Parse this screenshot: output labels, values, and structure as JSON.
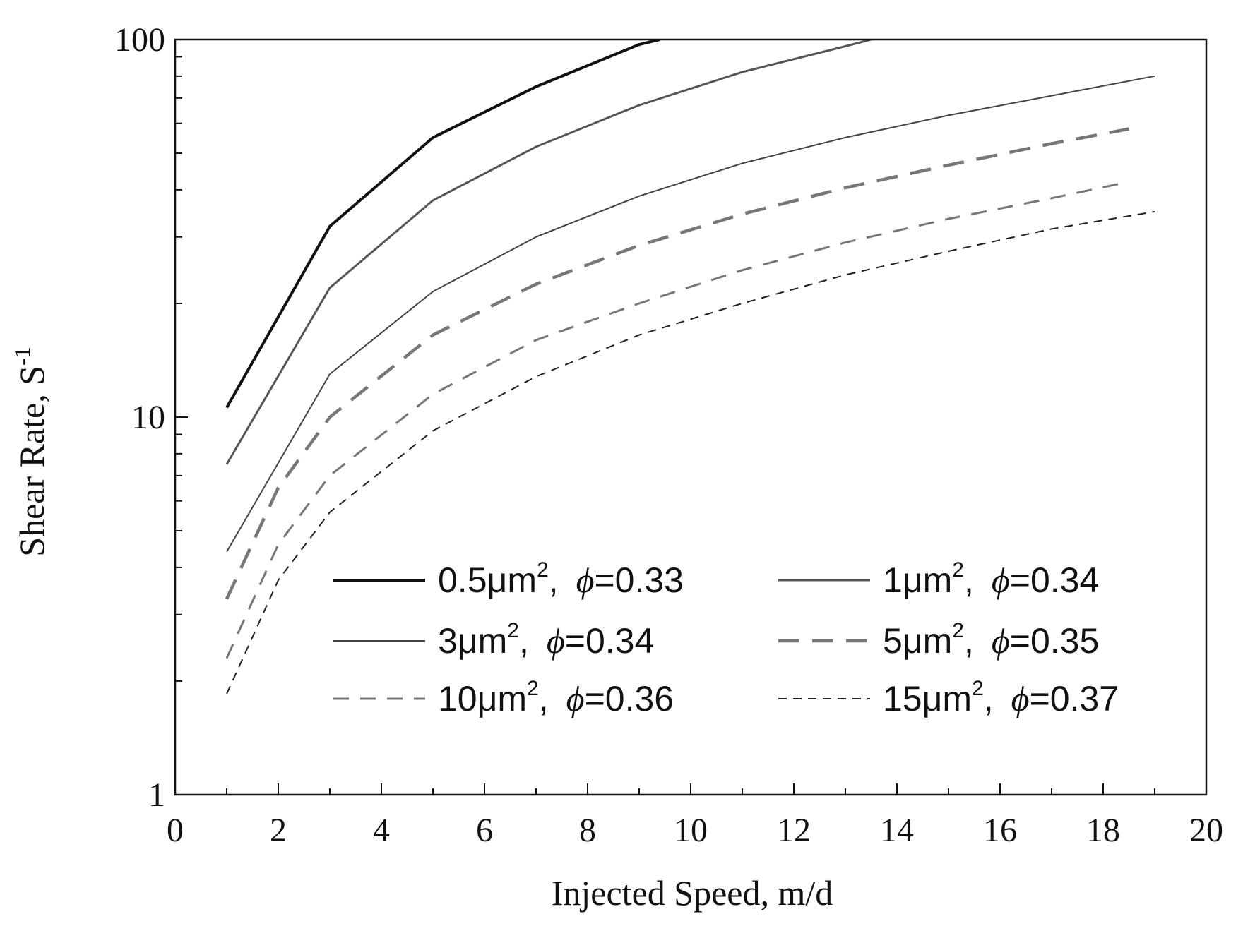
{
  "chart_data": {
    "type": "line",
    "title": "",
    "xlabel": "Injected Speed, m/d",
    "ylabel": "Shear Rate, S",
    "ylabel_sup": "-1",
    "xlim": [
      0,
      20
    ],
    "ylim": [
      1,
      100
    ],
    "yscale": "log",
    "x_ticks": [
      0,
      2,
      4,
      6,
      8,
      10,
      12,
      14,
      16,
      18,
      20
    ],
    "x_tick_labels": [
      "0",
      "2",
      "4",
      "6",
      "8",
      "10",
      "12",
      "14",
      "16",
      "18",
      "20"
    ],
    "y_ticks": [
      1,
      10,
      100
    ],
    "y_tick_labels": [
      "1",
      "10",
      "100"
    ],
    "grid": false,
    "legend_position": "lower-center",
    "series": [
      {
        "name": "0.5μm², ϕ=0.33",
        "perm": "0.5μm",
        "sup": "2",
        "phi_label": "ϕ",
        "phi_value": "=0.33",
        "color": "#111111",
        "stroke": "solid-thick",
        "x": [
          1,
          3,
          5,
          7,
          9,
          9.4
        ],
        "y": [
          10.6,
          32,
          55,
          75,
          97,
          100
        ]
      },
      {
        "name": "1μm², ϕ=0.34",
        "perm": "1μm",
        "sup": "2",
        "phi_label": "ϕ",
        "phi_value": "=0.34",
        "color": "#555555",
        "stroke": "solid-medium",
        "x": [
          1,
          3,
          5,
          7,
          9,
          11,
          13,
          13.5
        ],
        "y": [
          7.5,
          22,
          37.5,
          52,
          67,
          82,
          96,
          100
        ]
      },
      {
        "name": "3μm², ϕ=0.34",
        "perm": "3μm",
        "sup": "2",
        "phi_label": "ϕ",
        "phi_value": "=0.34",
        "color": "#444444",
        "stroke": "solid-thin",
        "x": [
          1,
          3,
          5,
          7,
          9,
          11,
          13,
          15,
          17,
          19
        ],
        "y": [
          4.4,
          13,
          21.5,
          30,
          38.5,
          47,
          55,
          63,
          71,
          80
        ]
      },
      {
        "name": "5μm², ϕ=0.35",
        "perm": "5μm",
        "sup": "2",
        "phi_label": "ϕ",
        "phi_value": "=0.35",
        "color": "#777777",
        "stroke": "dashed-thick",
        "x": [
          1,
          2,
          3,
          5,
          7,
          9,
          11,
          13,
          15,
          17,
          18.5
        ],
        "y": [
          3.3,
          6.5,
          10,
          16.5,
          22.5,
          28.5,
          34.5,
          40.5,
          46.5,
          53,
          58
        ]
      },
      {
        "name": "10μm², ϕ=0.36",
        "perm": "10μm",
        "sup": "2",
        "phi_label": "ϕ",
        "phi_value": "=0.36",
        "color": "#777777",
        "stroke": "dashed-medium",
        "x": [
          1,
          2,
          3,
          5,
          7,
          9,
          11,
          13,
          15,
          17,
          18.5
        ],
        "y": [
          2.3,
          4.6,
          7,
          11.5,
          16,
          20,
          24.5,
          29,
          33.5,
          38,
          42
        ]
      },
      {
        "name": "15μm², ϕ=0.37",
        "perm": "15μm",
        "sup": "2",
        "phi_label": "ϕ",
        "phi_value": "=0.37",
        "color": "#222222",
        "stroke": "dashed-thin",
        "x": [
          1,
          2,
          3,
          5,
          7,
          9,
          11,
          13,
          15,
          17,
          19
        ],
        "y": [
          1.85,
          3.7,
          5.6,
          9.2,
          12.8,
          16.5,
          20,
          23.8,
          27.5,
          31.5,
          35
        ]
      }
    ]
  }
}
